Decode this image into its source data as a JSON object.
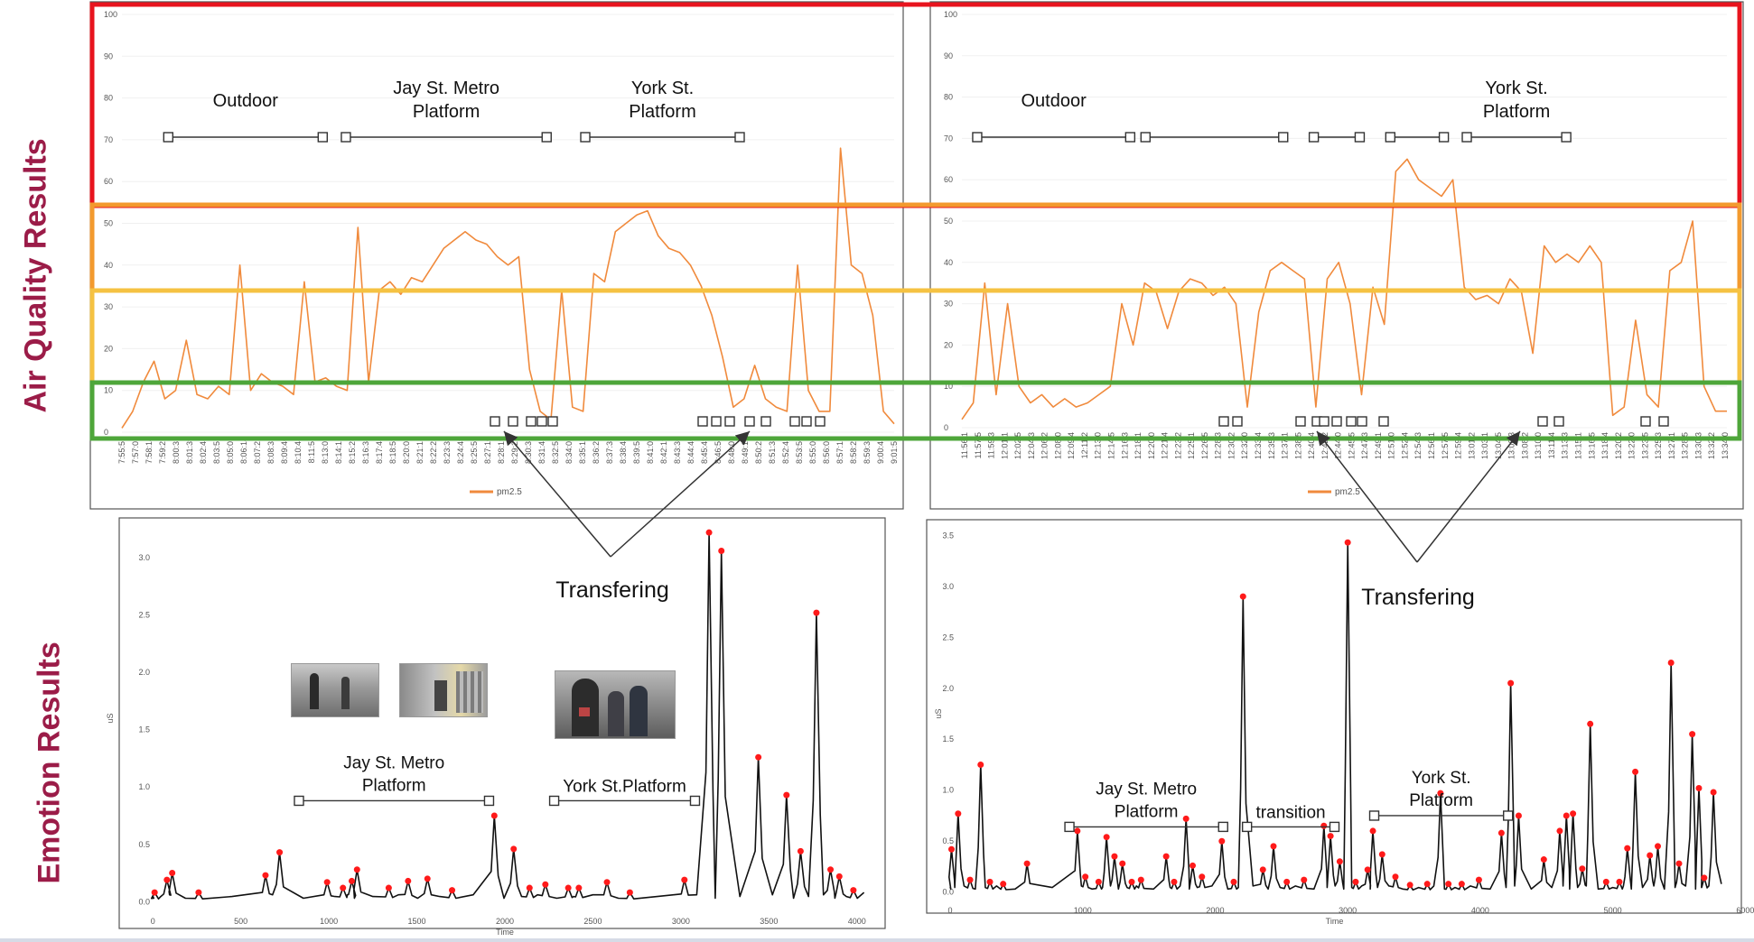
{
  "side_labels": {
    "air_quality": "Air Quality Results",
    "emotion": "Emotion Results"
  },
  "colors": {
    "pm_line": "#f08a3c",
    "emo_line": "#111111",
    "peak": "#ff1a1a",
    "red_band": "#e8141e",
    "orange_band": "#f39a2e",
    "yellow_band": "#f5c242",
    "green_band": "#4ea63a"
  },
  "chart_data": [
    {
      "id": "aq-left",
      "type": "line",
      "legend": "pm2.5",
      "ylim": [
        0,
        100
      ],
      "yticks": [
        0,
        10,
        20,
        30,
        40,
        50,
        60,
        70,
        80,
        90,
        100
      ],
      "xticks": [
        "7:55:56",
        "7:57:05",
        "7:58:14",
        "7:59:22",
        "8:00:31",
        "8:01:39",
        "8:02:48",
        "8:03:57",
        "8:05:05",
        "8:06:14",
        "8:07:22",
        "8:08:31",
        "8:09:40",
        "8:10:48",
        "8:11:57",
        "8:13:07",
        "8:14:17",
        "8:15:28",
        "8:16:38",
        "8:17:48",
        "8:18:59",
        "8:20:08",
        "8:21:18",
        "8:22:28",
        "8:23:39",
        "8:24:49",
        "8:25:59",
        "8:27:10",
        "8:28:19",
        "8:29:28",
        "8:30:37",
        "8:31:47",
        "8:32:55",
        "8:34:05",
        "8:35:15",
        "8:36:26",
        "8:37:37",
        "8:38:47",
        "8:39:58",
        "8:41:09",
        "8:42:19",
        "8:43:30",
        "8:44:40",
        "8:45:49",
        "8:46:58",
        "8:48:06",
        "8:49:16",
        "8:50:25",
        "8:51:33",
        "8:52:42",
        "8:53:50",
        "8:55:00",
        "8:56:08",
        "8:57:18",
        "8:58:27",
        "8:59:38",
        "9:00:46",
        "9:01:55"
      ],
      "values": [
        1,
        5,
        12,
        17,
        8,
        10,
        22,
        9,
        8,
        11,
        9,
        40,
        10,
        14,
        12,
        11,
        9,
        36,
        12,
        13,
        11,
        10,
        49,
        12,
        34,
        36,
        33,
        37,
        36,
        40,
        44,
        46,
        48,
        46,
        45,
        42,
        40,
        42,
        15,
        5,
        3,
        34,
        6,
        5,
        38,
        36,
        48,
        50,
        52,
        53,
        47,
        44,
        43,
        40,
        35,
        28,
        18,
        6,
        8,
        16,
        8,
        6,
        5,
        40,
        10,
        5,
        5,
        68,
        40,
        38,
        28,
        5,
        2
      ],
      "annotations": [
        {
          "text": "Outdoor",
          "lines": [
            "Outdoor"
          ],
          "start": 0.06,
          "end": 0.26
        },
        {
          "text": "Jay St. Metro Platform",
          "lines": [
            "Jay St. Metro",
            "Platform"
          ],
          "start": 0.29,
          "end": 0.55
        },
        {
          "text": "York St. Platform",
          "lines": [
            "York St.",
            "Platform"
          ],
          "start": 0.6,
          "end": 0.8
        }
      ]
    },
    {
      "id": "aq-right",
      "type": "line",
      "legend": "pm2.5",
      "ylim": [
        0,
        100
      ],
      "yticks": [
        0,
        10,
        20,
        30,
        40,
        50,
        60,
        70,
        80,
        90,
        100
      ],
      "xticks": [
        "11:56:1",
        "11:57:5",
        "11:59:3",
        "12:01:1",
        "12:02:5",
        "12:04:3",
        "12:06:2",
        "12:08:0",
        "12:09:4",
        "12:11:2",
        "12:13:0",
        "12:14:5",
        "12:16:3",
        "12:18:1",
        "12:20:0",
        "12:21:4",
        "12:23:2",
        "12:25:1",
        "12:26:5",
        "12:28:3",
        "12:30:2",
        "12:32:0",
        "12:33:4",
        "12:35:3",
        "12:37:1",
        "12:38:5",
        "12:40:4",
        "12:42:2",
        "12:44:0",
        "12:45:5",
        "12:47:3",
        "12:49:1",
        "12:51:0",
        "12:52:4",
        "12:54:3",
        "12:56:1",
        "12:57:5",
        "12:59:4",
        "13:01:2",
        "13:03:1",
        "13:04:5",
        "13:06:3",
        "13:08:2",
        "13:10:0",
        "13:11:4",
        "13:13:3",
        "13:15:1",
        "13:16:5",
        "13:18:4",
        "13:20:2",
        "13:22:0",
        "13:23:5",
        "13:25:3",
        "13:27:1",
        "13:28:5",
        "13:30:3",
        "13:32:2",
        "13:34:0"
      ],
      "values": [
        2,
        6,
        35,
        8,
        30,
        10,
        6,
        8,
        5,
        7,
        5,
        6,
        8,
        10,
        30,
        20,
        35,
        33,
        24,
        33,
        36,
        35,
        32,
        34,
        30,
        5,
        28,
        38,
        40,
        38,
        36,
        5,
        36,
        40,
        30,
        8,
        34,
        25,
        62,
        65,
        60,
        58,
        56,
        60,
        34,
        31,
        32,
        30,
        36,
        33,
        18,
        44,
        40,
        42,
        40,
        44,
        40,
        3,
        5,
        26,
        8,
        5,
        38,
        40,
        50,
        10,
        4,
        4
      ],
      "annotations": [
        {
          "text": "Outdoor",
          "lines": [
            "Outdoor"
          ],
          "start": 0.02,
          "end": 0.22
        },
        {
          "text": "",
          "lines": [],
          "start": 0.24,
          "end": 0.42
        },
        {
          "text": "",
          "lines": [],
          "start": 0.46,
          "end": 0.52
        },
        {
          "text": "",
          "lines": [],
          "start": 0.56,
          "end": 0.63
        },
        {
          "text": "York St. Platform",
          "lines": [
            "York St.",
            "Platform"
          ],
          "start": 0.66,
          "end": 0.79
        }
      ]
    },
    {
      "id": "emo-left",
      "type": "line",
      "xlabel": "Time",
      "ylabel": "uS",
      "xlim": [
        -150,
        4150
      ],
      "ylim": [
        -0.1,
        3.3
      ],
      "xticks": [
        0,
        500,
        1000,
        1500,
        2000,
        2500,
        3000,
        3500,
        4000
      ],
      "yticks": [
        0.0,
        0.5,
        1.0,
        1.5,
        2.0,
        2.5,
        3.0
      ],
      "peaks": [
        [
          10,
          0.08
        ],
        [
          80,
          0.19
        ],
        [
          110,
          0.25
        ],
        [
          260,
          0.08
        ],
        [
          640,
          0.23
        ],
        [
          720,
          0.43
        ],
        [
          990,
          0.17
        ],
        [
          1080,
          0.12
        ],
        [
          1130,
          0.18
        ],
        [
          1160,
          0.28
        ],
        [
          1340,
          0.12
        ],
        [
          1450,
          0.18
        ],
        [
          1560,
          0.2
        ],
        [
          1700,
          0.1
        ],
        [
          1940,
          0.75
        ],
        [
          2050,
          0.46
        ],
        [
          2140,
          0.12
        ],
        [
          2230,
          0.15
        ],
        [
          2360,
          0.12
        ],
        [
          2420,
          0.12
        ],
        [
          2580,
          0.17
        ],
        [
          2710,
          0.08
        ],
        [
          3020,
          0.19
        ],
        [
          3160,
          3.22
        ],
        [
          3230,
          3.06
        ],
        [
          3440,
          1.26
        ],
        [
          3600,
          0.93
        ],
        [
          3680,
          0.44
        ],
        [
          3770,
          2.52
        ],
        [
          3850,
          0.28
        ],
        [
          3900,
          0.22
        ],
        [
          3980,
          0.1
        ]
      ],
      "annotations": [
        {
          "text": "Jay St. Metro Platform",
          "lines": [
            "Jay St. Metro",
            "Platform"
          ],
          "x1": 830,
          "x2": 1910,
          "y": 0.88
        },
        {
          "text": "York St.Platform",
          "lines": [
            "York St.Platform"
          ],
          "x1": 2280,
          "x2": 3080,
          "y": 0.88
        }
      ],
      "arrow_label": "Transfering"
    },
    {
      "id": "emo-right",
      "type": "line",
      "xlabel": "Time",
      "ylabel": "uS",
      "xlim": [
        -150,
        5950
      ],
      "ylim": [
        -0.1,
        3.6
      ],
      "xticks": [
        0,
        1000,
        2000,
        3000,
        4000,
        5000,
        6000
      ],
      "yticks": [
        0.0,
        0.5,
        1.0,
        1.5,
        2.0,
        2.5,
        3.0,
        3.5
      ],
      "peaks": [
        [
          10,
          0.42
        ],
        [
          60,
          0.77
        ],
        [
          150,
          0.12
        ],
        [
          230,
          1.25
        ],
        [
          300,
          0.1
        ],
        [
          400,
          0.08
        ],
        [
          580,
          0.28
        ],
        [
          960,
          0.6
        ],
        [
          1020,
          0.15
        ],
        [
          1120,
          0.1
        ],
        [
          1180,
          0.54
        ],
        [
          1240,
          0.35
        ],
        [
          1300,
          0.28
        ],
        [
          1370,
          0.1
        ],
        [
          1440,
          0.12
        ],
        [
          1630,
          0.35
        ],
        [
          1690,
          0.1
        ],
        [
          1780,
          0.72
        ],
        [
          1830,
          0.26
        ],
        [
          1900,
          0.15
        ],
        [
          2050,
          0.5
        ],
        [
          2140,
          0.1
        ],
        [
          2210,
          2.9
        ],
        [
          2360,
          0.22
        ],
        [
          2440,
          0.45
        ],
        [
          2540,
          0.1
        ],
        [
          2670,
          0.12
        ],
        [
          2820,
          0.65
        ],
        [
          2870,
          0.55
        ],
        [
          2940,
          0.3
        ],
        [
          3000,
          3.43
        ],
        [
          3060,
          0.1
        ],
        [
          3150,
          0.22
        ],
        [
          3190,
          0.6
        ],
        [
          3260,
          0.37
        ],
        [
          3360,
          0.15
        ],
        [
          3470,
          0.07
        ],
        [
          3600,
          0.08
        ],
        [
          3700,
          0.97
        ],
        [
          3760,
          0.08
        ],
        [
          3860,
          0.08
        ],
        [
          3990,
          0.12
        ],
        [
          4160,
          0.58
        ],
        [
          4230,
          2.05
        ],
        [
          4290,
          0.75
        ],
        [
          4480,
          0.32
        ],
        [
          4600,
          0.6
        ],
        [
          4650,
          0.75
        ],
        [
          4700,
          0.77
        ],
        [
          4770,
          0.23
        ],
        [
          4830,
          1.65
        ],
        [
          4950,
          0.1
        ],
        [
          5050,
          0.1
        ],
        [
          5110,
          0.43
        ],
        [
          5170,
          1.18
        ],
        [
          5280,
          0.36
        ],
        [
          5340,
          0.45
        ],
        [
          5440,
          2.25
        ],
        [
          5500,
          0.28
        ],
        [
          5600,
          1.55
        ],
        [
          5650,
          1.02
        ],
        [
          5690,
          0.14
        ],
        [
          5760,
          0.98
        ]
      ],
      "annotations": [
        {
          "text": "Jay St. Metro Platform",
          "lines": [
            "Jay St. Metro",
            "Platform"
          ],
          "x1": 900,
          "x2": 2060,
          "y": 0.64
        },
        {
          "text": "transition",
          "lines": [
            "transition"
          ],
          "x1": 2240,
          "x2": 2900,
          "y": 0.64
        },
        {
          "text": "York St. Platform",
          "lines": [
            "York St.",
            "Platform"
          ],
          "x1": 3200,
          "x2": 4210,
          "y": 0.75
        }
      ],
      "arrow_label": "Transfering"
    }
  ]
}
